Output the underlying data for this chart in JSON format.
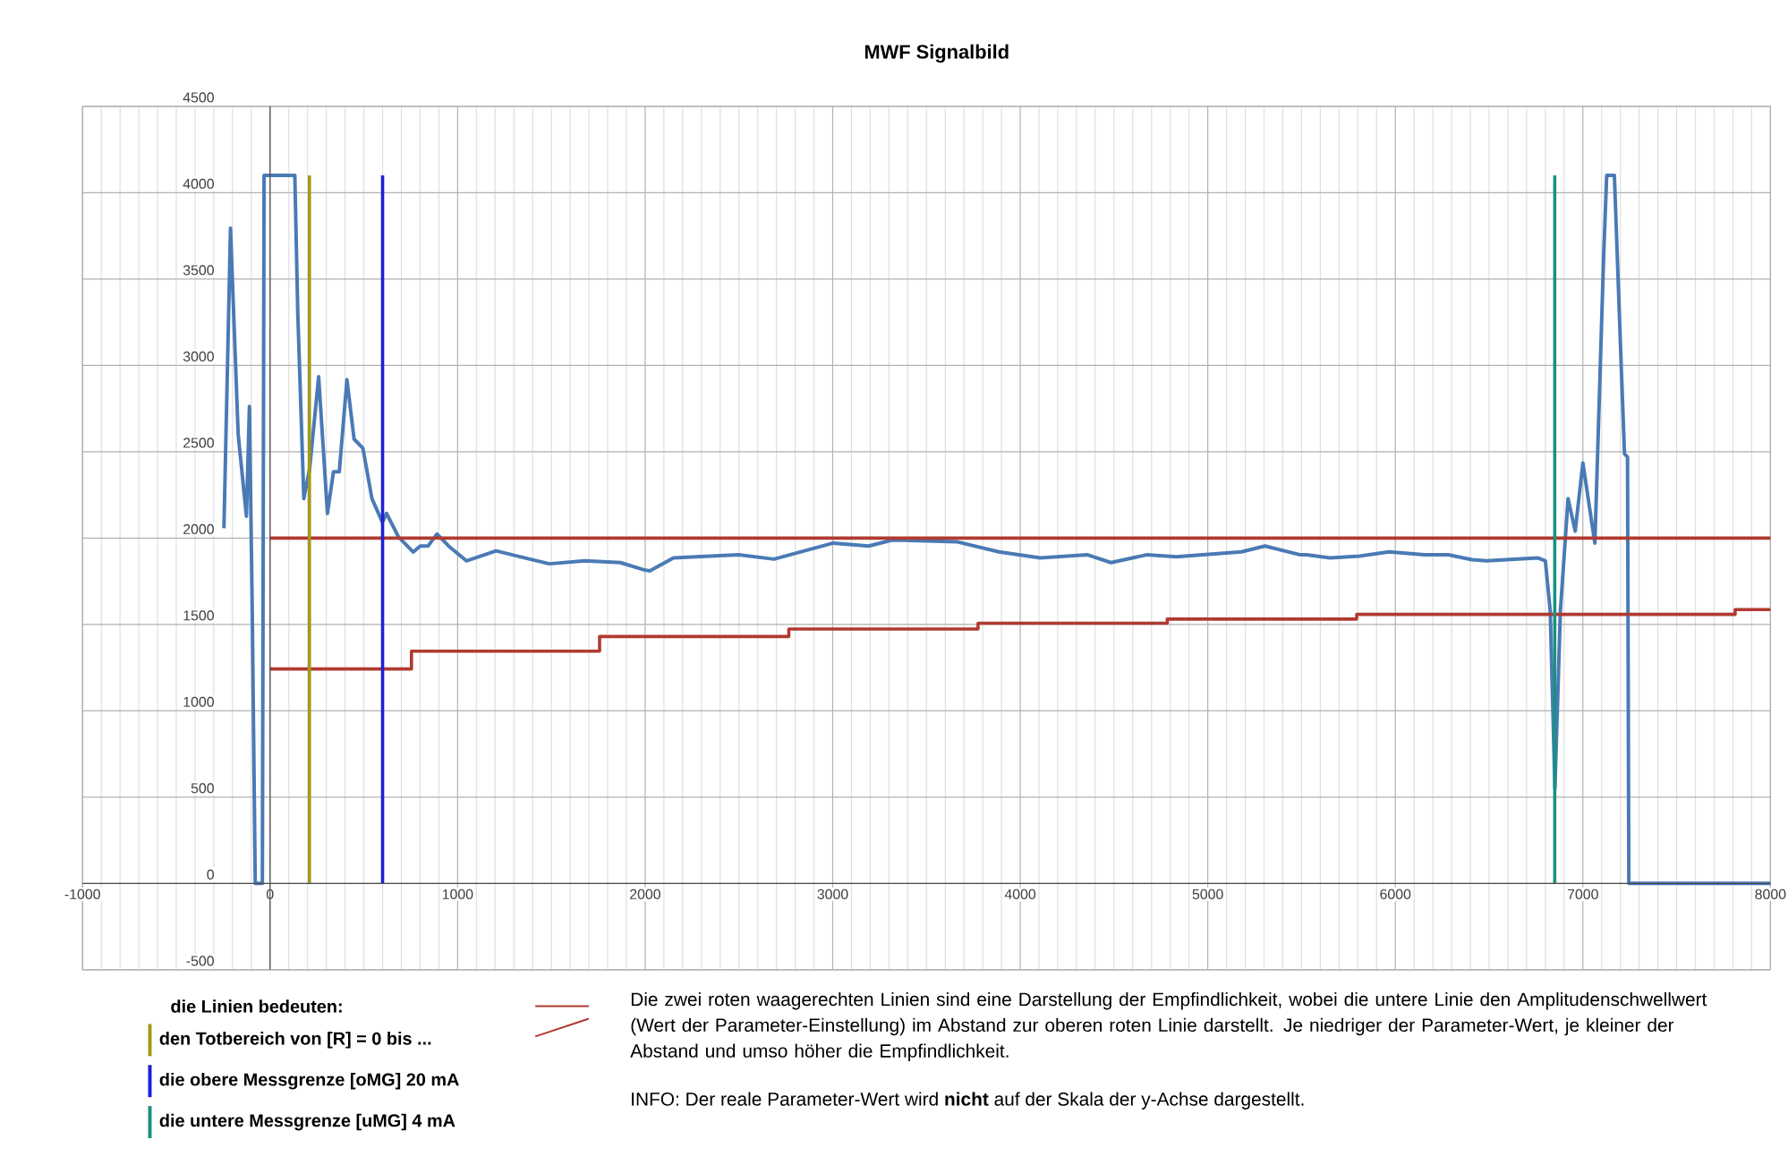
{
  "chart_data": {
    "type": "line",
    "title": "MWF Signalbild",
    "xlim": [
      -1000,
      8000
    ],
    "ylim": [
      -500,
      4500
    ],
    "xticks": [
      -1000,
      0,
      1000,
      2000,
      3000,
      4000,
      5000,
      6000,
      7000,
      8000
    ],
    "yticks": [
      -500,
      0,
      500,
      1000,
      1500,
      2000,
      2500,
      3000,
      3500,
      4000,
      4500
    ],
    "grid": true,
    "legend": "bottom left",
    "series": [
      {
        "color": "#4a7ab5",
        "x": [
          -246,
          -211,
          -170,
          -126,
          -110,
          -95,
          -79,
          -41,
          -32,
          132,
          148,
          180,
          211,
          259,
          306,
          338,
          369,
          410,
          448,
          495,
          543,
          599,
          621,
          685,
          763,
          801,
          842,
          890,
          952,
          1047,
          1205,
          1331,
          1489,
          1678,
          1868,
          1994,
          2025,
          2151,
          2498,
          2687,
          3003,
          3192,
          3318,
          3665,
          3886,
          4106,
          4359,
          4484,
          4674,
          4832,
          5179,
          5305,
          5494,
          5526,
          5652,
          5810,
          5967,
          6156,
          6282,
          6409,
          6487,
          6762,
          6800,
          6826,
          6851,
          6880,
          6921,
          6959,
          7000,
          7064,
          7111,
          7127,
          7168,
          7206,
          7222,
          7238,
          7245,
          8000
        ],
        "values": [
          2057,
          3794,
          2600,
          2126,
          2762,
          1575,
          0,
          0,
          4100,
          4100,
          3296,
          2229,
          2401,
          2934,
          2143,
          2384,
          2384,
          2917,
          2573,
          2521,
          2229,
          2092,
          2143,
          2006,
          1919,
          1954,
          1954,
          2023,
          1954,
          1868,
          1926,
          1892,
          1851,
          1868,
          1858,
          1816,
          1810,
          1885,
          1903,
          1878,
          1971,
          1954,
          1989,
          1978,
          1920,
          1885,
          1903,
          1858,
          1903,
          1892,
          1920,
          1954,
          1903,
          1903,
          1885,
          1896,
          1920,
          1903,
          1903,
          1875,
          1868,
          1885,
          1868,
          1576,
          550,
          1576,
          2229,
          2040,
          2435,
          1971,
          3640,
          4100,
          4100,
          2951,
          2487,
          2470,
          0,
          0
        ]
      },
      {
        "color": "#b03a30",
        "x": [
          0,
          8000
        ],
        "values": [
          2000,
          2000
        ]
      },
      {
        "type": "step",
        "color": "#b03a30",
        "x": [
          0,
          754,
          1757,
          2766,
          3775,
          4784,
          5794,
          7812,
          8000
        ],
        "values": [
          1242,
          1345,
          1430,
          1473,
          1507,
          1531,
          1558,
          1586,
          1586
        ]
      },
      {
        "name": "den Totbereich von [R] = 0 bis ...",
        "color": "#a09a1a",
        "x": [
          210,
          210
        ],
        "values": [
          0,
          4100
        ]
      },
      {
        "name": "die obere Messgrenze [oMG] 20 mA",
        "color": "#1f1fd6",
        "x": [
          600,
          600
        ],
        "values": [
          0,
          4100
        ]
      },
      {
        "name": "die untere Messgrenze [uMG] 4 mA",
        "color": "#1a9080",
        "x": [
          6850,
          6850
        ],
        "values": [
          0,
          4100
        ]
      }
    ],
    "annotations": [
      "die Linien bedeuten:",
      "Die zwei roten waagerechten Linien sind eine Darstellung der Empfindlichkeit, wobei die untere Linie den Amplitudenschwellwert (Wert der Parameter-Einstellung) im Abstand zur oberen roten Linie darstellt. Je niedriger der Parameter-Wert, je kleiner der Abstand und umso höher die Empfindlichkeit.",
      "INFO: Der reale Parameter-Wert wird **nicht** auf der Skala der y-Achse dargestellt."
    ]
  }
}
